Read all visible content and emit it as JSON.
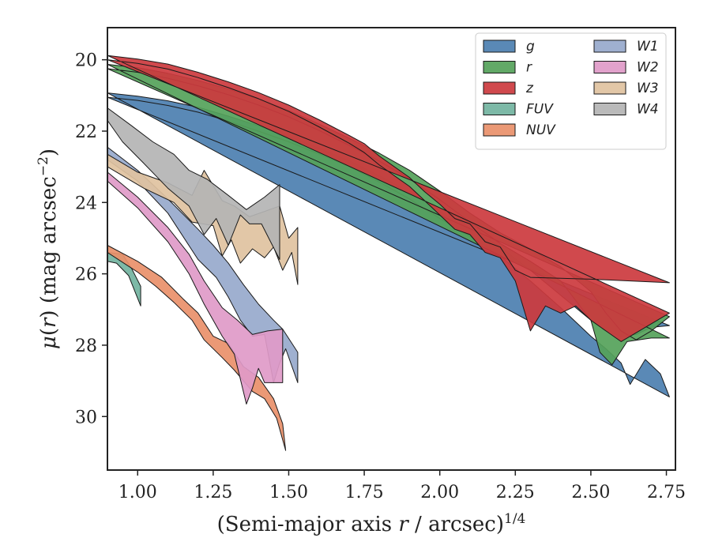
{
  "chart_data": {
    "type": "area",
    "title": "",
    "xlabel": {
      "main": "(Semi-major axis ",
      "var": "r",
      "unit": " / arcsec)",
      "sup": "1/4"
    },
    "ylabel": {
      "mu": "μ",
      "pre": "(",
      "var": "r",
      "post": ") (mag arcsec",
      "sup": "−2",
      "end": ")"
    },
    "xlim": [
      0.9,
      2.78
    ],
    "ylim": [
      31.5,
      19.1
    ],
    "y_inverted": true,
    "xticks": [
      1.0,
      1.25,
      1.5,
      1.75,
      2.0,
      2.25,
      2.5,
      2.75
    ],
    "xtick_labels": [
      "1.00",
      "1.25",
      "1.50",
      "1.75",
      "2.00",
      "2.25",
      "2.50",
      "2.75"
    ],
    "yticks": [
      20,
      22,
      24,
      26,
      28,
      30
    ],
    "ytick_labels": [
      "20",
      "22",
      "24",
      "26",
      "28",
      "30"
    ],
    "grid": false,
    "legend": {
      "placement": "top-right",
      "columns": 2
    },
    "series": [
      {
        "name": "g",
        "color": "#4c7fb0",
        "upper": [
          [
            0.9,
            20.93
          ],
          [
            1.0,
            21.02
          ],
          [
            1.1,
            21.15
          ],
          [
            1.2,
            21.33
          ],
          [
            1.3,
            21.58
          ],
          [
            1.4,
            21.85
          ],
          [
            1.5,
            22.15
          ],
          [
            1.6,
            22.48
          ],
          [
            1.7,
            22.83
          ],
          [
            1.8,
            23.25
          ],
          [
            1.9,
            23.72
          ],
          [
            2.0,
            24.25
          ],
          [
            2.1,
            24.72
          ],
          [
            2.2,
            25.25
          ],
          [
            2.3,
            25.9
          ],
          [
            2.4,
            26.6
          ],
          [
            2.5,
            27.3
          ],
          [
            2.55,
            27.6
          ],
          [
            2.6,
            27.75
          ],
          [
            2.65,
            27.7
          ],
          [
            2.7,
            27.5
          ],
          [
            2.76,
            27.45
          ]
        ],
        "lower": [
          [
            0.9,
            21.05
          ],
          [
            1.0,
            21.14
          ],
          [
            1.1,
            21.28
          ],
          [
            1.2,
            21.47
          ],
          [
            1.3,
            21.72
          ],
          [
            1.4,
            22.0
          ],
          [
            1.5,
            22.3
          ],
          [
            1.6,
            22.64
          ],
          [
            1.7,
            23.0
          ],
          [
            1.8,
            23.43
          ],
          [
            1.9,
            23.9
          ],
          [
            2.0,
            24.45
          ],
          [
            2.1,
            24.95
          ],
          [
            2.2,
            25.5
          ],
          [
            2.3,
            26.2
          ],
          [
            2.4,
            26.95
          ],
          [
            2.5,
            27.75
          ],
          [
            2.55,
            28.1
          ],
          [
            2.6,
            28.5
          ],
          [
            2.63,
            29.1
          ],
          [
            2.68,
            28.4
          ],
          [
            2.73,
            28.8
          ],
          [
            2.76,
            29.45
          ]
        ]
      },
      {
        "name": "r",
        "color": "#55a25a",
        "upper": [
          [
            0.9,
            20.13
          ],
          [
            1.0,
            20.22
          ],
          [
            1.1,
            20.38
          ],
          [
            1.2,
            20.58
          ],
          [
            1.3,
            20.82
          ],
          [
            1.4,
            21.1
          ],
          [
            1.5,
            21.42
          ],
          [
            1.6,
            21.8
          ],
          [
            1.7,
            22.2
          ],
          [
            1.8,
            22.62
          ],
          [
            1.9,
            23.1
          ],
          [
            2.0,
            23.68
          ],
          [
            2.1,
            24.3
          ],
          [
            2.2,
            24.85
          ],
          [
            2.3,
            25.3
          ],
          [
            2.4,
            25.8
          ],
          [
            2.5,
            26.5
          ],
          [
            2.55,
            27.1
          ],
          [
            2.6,
            27.6
          ],
          [
            2.65,
            27.85
          ],
          [
            2.7,
            27.6
          ],
          [
            2.76,
            27.2
          ]
        ],
        "lower": [
          [
            0.9,
            20.25
          ],
          [
            1.0,
            20.35
          ],
          [
            1.1,
            20.52
          ],
          [
            1.2,
            20.73
          ],
          [
            1.3,
            20.98
          ],
          [
            1.4,
            21.27
          ],
          [
            1.5,
            21.6
          ],
          [
            1.6,
            21.98
          ],
          [
            1.7,
            22.4
          ],
          [
            1.8,
            22.84
          ],
          [
            1.9,
            23.34
          ],
          [
            2.0,
            23.92
          ],
          [
            2.1,
            24.55
          ],
          [
            2.2,
            25.15
          ],
          [
            2.3,
            25.65
          ],
          [
            2.4,
            26.2
          ],
          [
            2.5,
            27.3
          ],
          [
            2.53,
            28.2
          ],
          [
            2.57,
            28.55
          ],
          [
            2.62,
            27.9
          ],
          [
            2.7,
            27.8
          ],
          [
            2.76,
            27.8
          ]
        ]
      },
      {
        "name": "z",
        "color": "#cc3a3e",
        "upper": [
          [
            0.9,
            19.88
          ],
          [
            1.0,
            19.98
          ],
          [
            1.1,
            20.12
          ],
          [
            1.2,
            20.35
          ],
          [
            1.3,
            20.62
          ],
          [
            1.4,
            20.92
          ],
          [
            1.5,
            21.27
          ],
          [
            1.6,
            21.68
          ],
          [
            1.7,
            22.12
          ],
          [
            1.75,
            22.35
          ],
          [
            1.8,
            22.7
          ],
          [
            1.9,
            23.3
          ],
          [
            1.95,
            23.7
          ],
          [
            2.0,
            24.05
          ],
          [
            2.05,
            24.45
          ],
          [
            2.1,
            24.6
          ],
          [
            2.15,
            25.1
          ],
          [
            2.2,
            25.25
          ],
          [
            2.25,
            25.9
          ],
          [
            2.3,
            26.1
          ],
          [
            2.5,
            26.15
          ],
          [
            2.76,
            26.25
          ]
        ],
        "lower": [
          [
            0.9,
            20.0
          ],
          [
            1.0,
            20.1
          ],
          [
            1.1,
            20.26
          ],
          [
            1.2,
            20.5
          ],
          [
            1.3,
            20.78
          ],
          [
            1.4,
            21.09
          ],
          [
            1.5,
            21.45
          ],
          [
            1.6,
            21.88
          ],
          [
            1.7,
            22.34
          ],
          [
            1.75,
            22.6
          ],
          [
            1.8,
            22.95
          ],
          [
            1.9,
            23.55
          ],
          [
            1.95,
            23.95
          ],
          [
            2.0,
            24.35
          ],
          [
            2.05,
            24.75
          ],
          [
            2.1,
            24.9
          ],
          [
            2.15,
            25.4
          ],
          [
            2.2,
            25.55
          ],
          [
            2.25,
            26.2
          ],
          [
            2.3,
            27.6
          ],
          [
            2.35,
            26.9
          ],
          [
            2.4,
            27.1
          ],
          [
            2.45,
            26.9
          ],
          [
            2.5,
            27.3
          ],
          [
            2.55,
            27.6
          ],
          [
            2.6,
            27.9
          ],
          [
            2.76,
            27.1
          ]
        ]
      },
      {
        "name": "FUV",
        "color": "#72b3a0",
        "upper": [
          [
            0.9,
            25.4
          ],
          [
            0.95,
            25.45
          ],
          [
            0.98,
            25.85
          ],
          [
            1.01,
            26.35
          ]
        ],
        "lower": [
          [
            1.01,
            26.9
          ],
          [
            0.97,
            26.05
          ],
          [
            0.93,
            25.7
          ],
          [
            0.9,
            25.65
          ]
        ]
      },
      {
        "name": "NUV",
        "color": "#e9906a",
        "upper": [
          [
            0.9,
            25.2
          ],
          [
            1.0,
            25.65
          ],
          [
            1.08,
            26.1
          ],
          [
            1.15,
            26.7
          ],
          [
            1.2,
            27.1
          ],
          [
            1.25,
            27.75
          ],
          [
            1.3,
            27.95
          ],
          [
            1.35,
            28.6
          ],
          [
            1.4,
            28.9
          ],
          [
            1.45,
            29.5
          ],
          [
            1.48,
            30.2
          ]
        ],
        "lower": [
          [
            1.49,
            30.95
          ],
          [
            1.46,
            30.05
          ],
          [
            1.42,
            29.5
          ],
          [
            1.38,
            29.3
          ],
          [
            1.32,
            28.7
          ],
          [
            1.28,
            28.35
          ],
          [
            1.22,
            27.85
          ],
          [
            1.18,
            27.3
          ],
          [
            1.12,
            26.8
          ],
          [
            1.06,
            26.35
          ],
          [
            1.0,
            25.95
          ],
          [
            0.9,
            25.4
          ]
        ]
      },
      {
        "name": "W1",
        "color": "#97a9cc",
        "upper": [
          [
            0.9,
            22.45
          ],
          [
            1.0,
            23.1
          ],
          [
            1.1,
            23.9
          ],
          [
            1.2,
            24.75
          ],
          [
            1.25,
            25.2
          ],
          [
            1.3,
            25.7
          ],
          [
            1.35,
            26.3
          ],
          [
            1.4,
            26.85
          ],
          [
            1.45,
            27.3
          ],
          [
            1.48,
            27.55
          ],
          [
            1.53,
            28.2
          ],
          [
            1.53,
            29.05
          ]
        ],
        "lower": [
          [
            1.53,
            29.05
          ],
          [
            1.49,
            28.1
          ],
          [
            1.47,
            28.5
          ],
          [
            1.45,
            29.05
          ],
          [
            1.42,
            27.7
          ],
          [
            1.38,
            27.75
          ],
          [
            1.34,
            27.3
          ],
          [
            1.3,
            26.65
          ],
          [
            1.26,
            26.1
          ],
          [
            1.2,
            25.6
          ],
          [
            1.1,
            24.3
          ],
          [
            1.0,
            23.4
          ],
          [
            0.9,
            22.8
          ]
        ]
      },
      {
        "name": "W2",
        "color": "#e09ac8",
        "upper": [
          [
            0.9,
            23.15
          ],
          [
            1.0,
            23.85
          ],
          [
            1.1,
            24.7
          ],
          [
            1.17,
            25.45
          ],
          [
            1.22,
            26.2
          ],
          [
            1.28,
            26.95
          ],
          [
            1.33,
            27.3
          ],
          [
            1.38,
            27.7
          ],
          [
            1.43,
            27.6
          ],
          [
            1.48,
            27.55
          ],
          [
            1.48,
            29.05
          ]
        ],
        "lower": [
          [
            1.48,
            29.05
          ],
          [
            1.42,
            29.05
          ],
          [
            1.4,
            28.65
          ],
          [
            1.38,
            29.2
          ],
          [
            1.36,
            29.65
          ],
          [
            1.32,
            28.25
          ],
          [
            1.28,
            27.75
          ],
          [
            1.22,
            26.85
          ],
          [
            1.17,
            26.0
          ],
          [
            1.1,
            25.1
          ],
          [
            1.0,
            24.15
          ],
          [
            0.9,
            23.4
          ]
        ]
      },
      {
        "name": "W3",
        "color": "#e0c2a0",
        "upper": [
          [
            0.9,
            22.65
          ],
          [
            1.0,
            23.15
          ],
          [
            1.1,
            23.45
          ],
          [
            1.18,
            23.8
          ],
          [
            1.22,
            23.1
          ],
          [
            1.28,
            23.95
          ],
          [
            1.32,
            24.1
          ],
          [
            1.37,
            24.4
          ],
          [
            1.42,
            24.25
          ],
          [
            1.47,
            24.1
          ],
          [
            1.5,
            25.0
          ],
          [
            1.53,
            24.7
          ],
          [
            1.53,
            26.3
          ]
        ],
        "lower": [
          [
            1.53,
            26.3
          ],
          [
            1.51,
            25.4
          ],
          [
            1.48,
            25.9
          ],
          [
            1.45,
            25.25
          ],
          [
            1.42,
            25.55
          ],
          [
            1.38,
            25.3
          ],
          [
            1.34,
            25.7
          ],
          [
            1.31,
            25.05
          ],
          [
            1.28,
            25.5
          ],
          [
            1.25,
            24.65
          ],
          [
            1.18,
            24.55
          ],
          [
            1.12,
            24.0
          ],
          [
            1.02,
            23.6
          ],
          [
            0.9,
            23.0
          ]
        ]
      },
      {
        "name": "W4",
        "color": "#b4b4b4",
        "upper": [
          [
            0.9,
            21.35
          ],
          [
            0.98,
            21.85
          ],
          [
            1.05,
            22.3
          ],
          [
            1.12,
            22.65
          ],
          [
            1.17,
            23.1
          ],
          [
            1.23,
            23.35
          ],
          [
            1.3,
            23.8
          ],
          [
            1.36,
            24.2
          ],
          [
            1.42,
            23.85
          ],
          [
            1.47,
            23.5
          ],
          [
            1.47,
            25.6
          ]
        ],
        "lower": [
          [
            1.47,
            25.6
          ],
          [
            1.44,
            25.1
          ],
          [
            1.41,
            24.6
          ],
          [
            1.37,
            24.6
          ],
          [
            1.34,
            24.35
          ],
          [
            1.3,
            25.2
          ],
          [
            1.26,
            24.45
          ],
          [
            1.22,
            24.9
          ],
          [
            1.17,
            24.1
          ],
          [
            1.1,
            23.6
          ],
          [
            1.02,
            22.9
          ],
          [
            0.95,
            22.3
          ],
          [
            0.9,
            21.7
          ]
        ]
      }
    ]
  }
}
